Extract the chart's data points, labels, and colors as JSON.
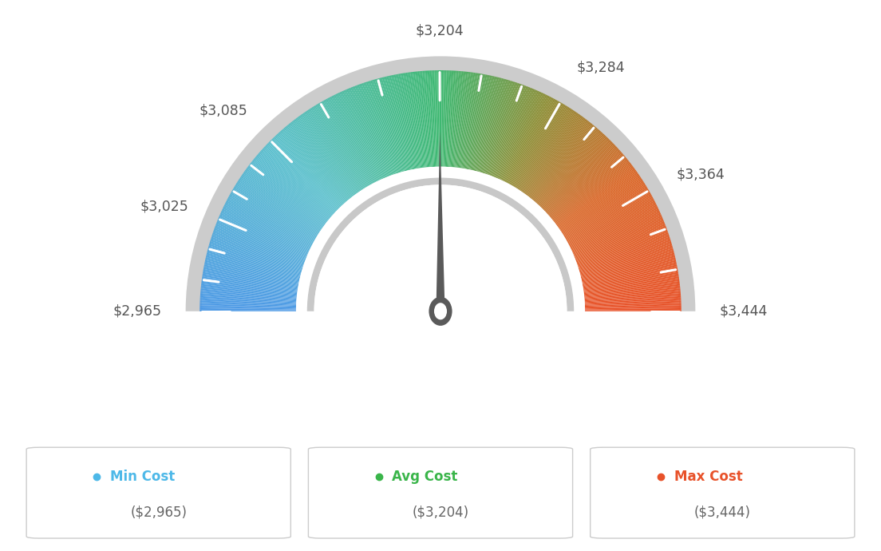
{
  "min_val": 2965,
  "max_val": 3444,
  "avg_val": 3204,
  "tick_labels": [
    "$2,965",
    "$3,025",
    "$3,085",
    "$3,204",
    "$3,284",
    "$3,364",
    "$3,444"
  ],
  "tick_values": [
    2965,
    3025,
    3085,
    3204,
    3284,
    3364,
    3444
  ],
  "min_color": "#4db8e8",
  "avg_color": "#3ab54a",
  "max_color": "#e8522a",
  "legend_label_min": "Min Cost",
  "legend_label_avg": "Avg Cost",
  "legend_label_max": "Max Cost",
  "legend_val_min": "($2,965)",
  "legend_val_avg": "($3,204)",
  "legend_val_max": "($3,444)",
  "background_color": "#ffffff",
  "needle_color": "#5a5a5a",
  "color_stops": [
    [
      0.0,
      [
        0.3,
        0.6,
        0.9
      ]
    ],
    [
      0.25,
      [
        0.35,
        0.75,
        0.8
      ]
    ],
    [
      0.5,
      [
        0.24,
        0.72,
        0.44
      ]
    ],
    [
      0.65,
      [
        0.55,
        0.55,
        0.2
      ]
    ],
    [
      0.8,
      [
        0.85,
        0.4,
        0.15
      ]
    ],
    [
      1.0,
      [
        0.91,
        0.32,
        0.16
      ]
    ]
  ]
}
